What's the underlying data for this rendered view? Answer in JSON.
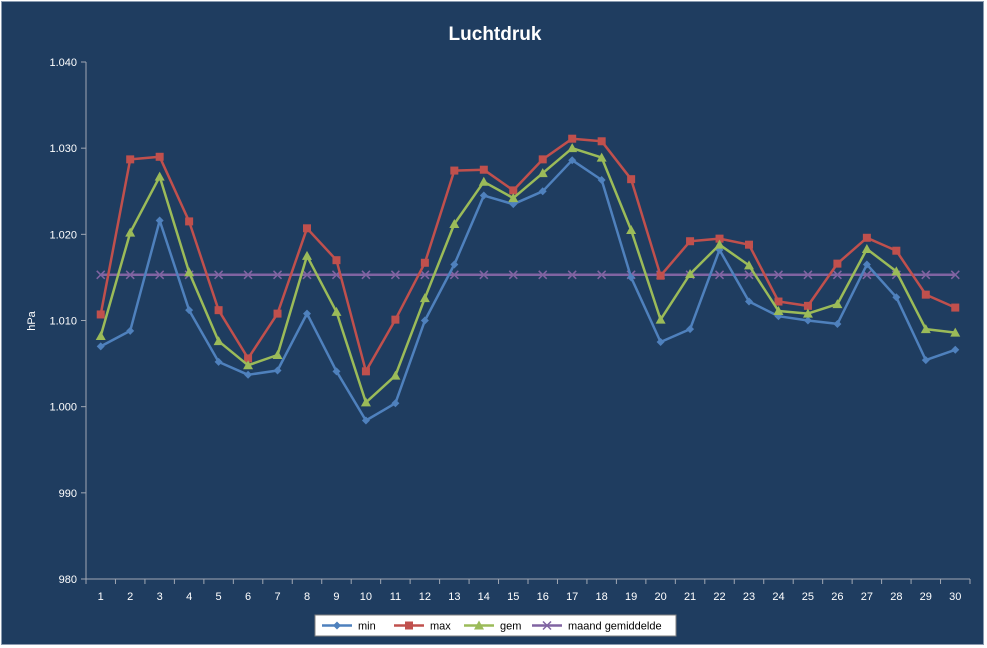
{
  "chart_data": {
    "type": "line",
    "title": "Luchtdruk",
    "ylabel": "hPa",
    "xlabel": "",
    "ylim": [
      980,
      1040
    ],
    "yticks": [
      980,
      990,
      1000,
      1010,
      1020,
      1030,
      1040
    ],
    "ytick_labels": [
      "980",
      "990",
      "1.000",
      "1.010",
      "1.020",
      "1.030",
      "1.040"
    ],
    "categories": [
      "1",
      "2",
      "3",
      "4",
      "5",
      "6",
      "7",
      "8",
      "9",
      "10",
      "11",
      "12",
      "13",
      "14",
      "15",
      "16",
      "17",
      "18",
      "19",
      "20",
      "21",
      "22",
      "23",
      "24",
      "25",
      "26",
      "27",
      "28",
      "29",
      "30"
    ],
    "grid": false,
    "legend_position": "bottom",
    "series": [
      {
        "name": "min",
        "color": "#4f81bd",
        "marker": "diamond",
        "values": [
          1007.0,
          1008.8,
          1021.6,
          1011.2,
          1005.2,
          1003.7,
          1004.2,
          1010.8,
          1004.1,
          998.4,
          1000.4,
          1010.0,
          1016.5,
          1024.5,
          1023.5,
          1025.0,
          1028.6,
          1026.3,
          1015.0,
          1007.5,
          1009.0,
          1018.2,
          1012.2,
          1010.5,
          1010.0,
          1009.6,
          1016.5,
          1012.7,
          1005.4,
          1006.6
        ]
      },
      {
        "name": "max",
        "color": "#c0504d",
        "marker": "square",
        "values": [
          1010.7,
          1028.7,
          1029.0,
          1021.5,
          1011.2,
          1005.6,
          1010.8,
          1020.7,
          1017.0,
          1004.1,
          1010.1,
          1016.7,
          1027.4,
          1027.5,
          1025.1,
          1028.7,
          1031.1,
          1030.8,
          1026.4,
          1015.2,
          1019.2,
          1019.5,
          1018.8,
          1012.2,
          1011.7,
          1016.6,
          1019.6,
          1018.1,
          1013.0,
          1011.5
        ]
      },
      {
        "name": "gem",
        "color": "#9bbb59",
        "marker": "triangle",
        "values": [
          1008.2,
          1020.2,
          1026.7,
          1015.6,
          1007.6,
          1004.8,
          1006.0,
          1017.5,
          1011.0,
          1000.5,
          1003.6,
          1012.6,
          1021.2,
          1026.1,
          1024.2,
          1027.1,
          1030.0,
          1028.9,
          1020.5,
          1010.1,
          1015.4,
          1018.8,
          1016.4,
          1011.1,
          1010.8,
          1011.9,
          1018.3,
          1015.7,
          1009.0,
          1008.6
        ]
      },
      {
        "name": "maand gemiddelde",
        "color": "#8064a2",
        "marker": "x",
        "values": [
          1015.3,
          1015.3,
          1015.3,
          1015.3,
          1015.3,
          1015.3,
          1015.3,
          1015.3,
          1015.3,
          1015.3,
          1015.3,
          1015.3,
          1015.3,
          1015.3,
          1015.3,
          1015.3,
          1015.3,
          1015.3,
          1015.3,
          1015.3,
          1015.3,
          1015.3,
          1015.3,
          1015.3,
          1015.3,
          1015.3,
          1015.3,
          1015.3,
          1015.3,
          1015.3
        ]
      }
    ]
  }
}
